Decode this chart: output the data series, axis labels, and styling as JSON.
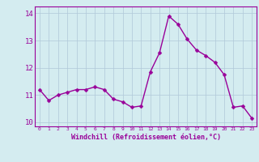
{
  "x": [
    0,
    1,
    2,
    3,
    4,
    5,
    6,
    7,
    8,
    9,
    10,
    11,
    12,
    13,
    14,
    15,
    16,
    17,
    18,
    19,
    20,
    21,
    22,
    23
  ],
  "y": [
    11.2,
    10.8,
    11.0,
    11.1,
    11.2,
    11.2,
    11.3,
    11.2,
    10.85,
    10.75,
    10.55,
    10.6,
    11.85,
    12.55,
    13.9,
    13.6,
    13.05,
    12.65,
    12.45,
    12.2,
    11.75,
    10.55,
    10.6,
    10.15
  ],
  "line_color": "#990099",
  "marker_color": "#990099",
  "background_color": "#d4ecf0",
  "grid_color": "#b0c8d8",
  "xlabel": "Windchill (Refroidissement éolien,°C)",
  "xlabel_color": "#990099",
  "tick_color": "#990099",
  "ylim": [
    9.85,
    14.25
  ],
  "xlim": [
    -0.5,
    23.5
  ],
  "yticks": [
    10,
    11,
    12,
    13,
    14
  ],
  "xticks": [
    0,
    1,
    2,
    3,
    4,
    5,
    6,
    7,
    8,
    9,
    10,
    11,
    12,
    13,
    14,
    15,
    16,
    17,
    18,
    19,
    20,
    21,
    22,
    23
  ],
  "marker_size": 2.5,
  "line_width": 1.0
}
